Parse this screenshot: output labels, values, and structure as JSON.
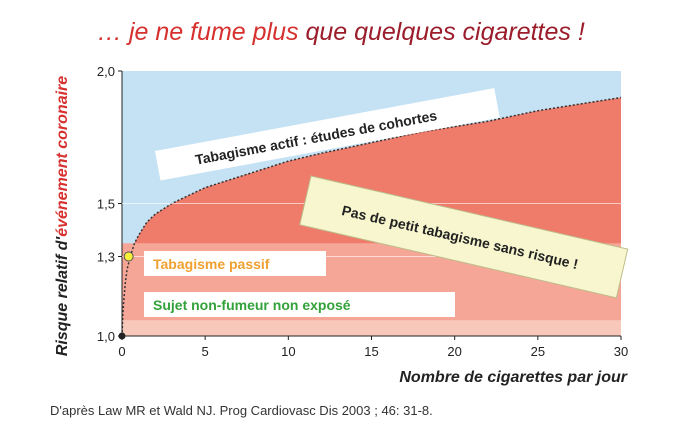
{
  "title": {
    "part1": "… je ne fume plus ",
    "part2": "que quelques cigarettes !"
  },
  "source": "D'après Law MR et Wald NJ. Prog Cardiovasc Dis 2003 ; 46: 31-8.",
  "colors": {
    "sky": "#c5e2f4",
    "band_dark": "#ef7b6a",
    "band_mid": "#f5a696",
    "band_light": "#f8c9bb",
    "curve": "#333333",
    "passive_point": "#f6f03a",
    "passive_text": "#f0a030",
    "nonsmoker_text": "#33a23a",
    "note_box": "#f7f6cf"
  },
  "chart_data": {
    "type": "area",
    "xlabel": "Nombre de cigarettes par jour",
    "ylabel_part1": "Risque relatif d'",
    "ylabel_part2": "événement coronaire",
    "xlim": [
      0,
      30
    ],
    "ylim": [
      1.0,
      2.0
    ],
    "x_ticks": [
      "0",
      "5",
      "10",
      "15",
      "20",
      "25",
      "30"
    ],
    "y_ticks": [
      {
        "value": 1.0,
        "label": "1,0"
      },
      {
        "value": 1.3,
        "label": "1,3"
      },
      {
        "value": 1.5,
        "label": "1,5"
      },
      {
        "value": 2.0,
        "label": "2,0"
      }
    ],
    "bands": [
      {
        "name": "band_light",
        "from": 1.0,
        "to": 1.06
      },
      {
        "name": "band_mid",
        "from": 1.06,
        "to": 1.35
      },
      {
        "name": "band_dark",
        "from": 1.35,
        "to": 2.0
      }
    ],
    "series": [
      {
        "x": [
          0,
          0.05,
          0.1,
          0.2,
          0.3,
          0.5,
          0.75,
          1,
          1.5,
          2,
          3,
          4,
          5,
          6,
          8,
          10,
          12,
          15,
          18,
          20,
          22,
          25,
          28,
          30
        ],
        "y": [
          1.0,
          1.08,
          1.13,
          1.2,
          1.25,
          1.3,
          1.35,
          1.38,
          1.43,
          1.46,
          1.5,
          1.53,
          1.56,
          1.58,
          1.62,
          1.66,
          1.69,
          1.73,
          1.77,
          1.79,
          1.81,
          1.85,
          1.88,
          1.9
        ]
      }
    ],
    "points": [
      {
        "name": "passive",
        "x": 0.4,
        "y": 1.3
      },
      {
        "name": "origin",
        "x": 0,
        "y": 1.0
      }
    ],
    "annotations": [
      {
        "name": "active",
        "text": "Tabagisme actif : études de cohortes"
      },
      {
        "name": "passive",
        "text": "Tabagisme passif"
      },
      {
        "name": "nonsmoker",
        "text": "Sujet non-fumeur non exposé"
      },
      {
        "name": "note",
        "text": "Pas de petit tabagisme sans risque !"
      }
    ]
  }
}
